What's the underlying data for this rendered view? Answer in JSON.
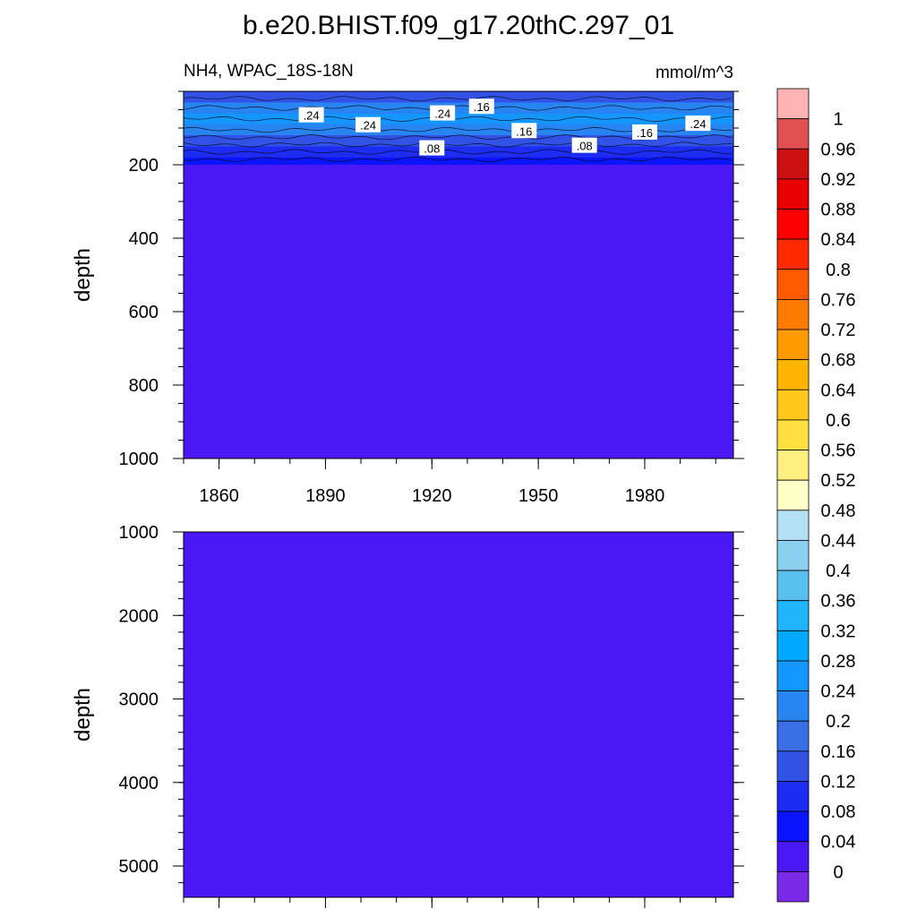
{
  "title": "b.e20.BHIST.f09_g17.20thC.297_01",
  "subtitle_left": "NH4, WPAC_18S-18N",
  "subtitle_right": "mmol/m^3",
  "chart_data": [
    {
      "type": "heatmap",
      "panel": "upper",
      "ylabel": "depth",
      "xlabel": "",
      "x_ticks": [
        "1860",
        "1890",
        "1920",
        "1950",
        "1980"
      ],
      "x_tick_values": [
        1860,
        1890,
        1920,
        1950,
        1980
      ],
      "xlim": [
        1850,
        2005
      ],
      "y_ticks": [
        "200",
        "400",
        "600",
        "800",
        "1000"
      ],
      "y_tick_values": [
        200,
        400,
        600,
        800,
        1000
      ],
      "ylim": [
        0,
        1000
      ],
      "y_inverted": true,
      "depth_profile": [
        {
          "depth": 5,
          "value": 0.14
        },
        {
          "depth": 30,
          "value": 0.22
        },
        {
          "depth": 60,
          "value": 0.27
        },
        {
          "depth": 90,
          "value": 0.22
        },
        {
          "depth": 120,
          "value": 0.15
        },
        {
          "depth": 150,
          "value": 0.09
        },
        {
          "depth": 180,
          "value": 0.05
        },
        {
          "depth": 200,
          "value": 0.0
        },
        {
          "depth": 1000,
          "value": 0.0
        }
      ],
      "contour_labels": [
        {
          "text": ".24",
          "x": 1886,
          "depth": 65
        },
        {
          "text": ".24",
          "x": 1902,
          "depth": 92
        },
        {
          "text": ".24",
          "x": 1923,
          "depth": 60
        },
        {
          "text": ".16",
          "x": 1934,
          "depth": 42
        },
        {
          "text": ".16",
          "x": 1946,
          "depth": 108
        },
        {
          "text": ".08",
          "x": 1920,
          "depth": 155
        },
        {
          "text": ".08",
          "x": 1963,
          "depth": 148
        },
        {
          "text": ".16",
          "x": 1980,
          "depth": 112
        },
        {
          "text": ".24",
          "x": 1995,
          "depth": 88
        }
      ]
    },
    {
      "type": "heatmap",
      "panel": "lower",
      "ylabel": "depth",
      "xlabel": "",
      "y_ticks": [
        "1000",
        "2000",
        "3000",
        "4000",
        "5000"
      ],
      "y_tick_values": [
        1000,
        2000,
        3000,
        4000,
        5000
      ],
      "ylim": [
        1000,
        5375
      ],
      "y_inverted": true,
      "xlim": [
        1850,
        2005
      ],
      "uniform_value": 0.0
    }
  ],
  "colorbar": {
    "labels": [
      "1",
      "0.96",
      "0.92",
      "0.88",
      "0.84",
      "0.8",
      "0.76",
      "0.72",
      "0.68",
      "0.64",
      "0.6",
      "0.56",
      "0.52",
      "0.48",
      "0.44",
      "0.4",
      "0.36",
      "0.32",
      "0.28",
      "0.24",
      "0.2",
      "0.16",
      "0.12",
      "0.08",
      "0.04",
      "0"
    ],
    "colors_top_to_bottom": [
      "#ffb3b3",
      "#e05050",
      "#cc1010",
      "#e60000",
      "#ff0000",
      "#ff2a00",
      "#ff5a00",
      "#ff7a00",
      "#ff9a00",
      "#ffb400",
      "#ffc81a",
      "#ffe040",
      "#fff080",
      "#ffffc8",
      "#b4e0f5",
      "#8cd0f0",
      "#5ac0f0",
      "#20b4fa",
      "#00a8ff",
      "#1496ff",
      "#2884f0",
      "#3a6ee6",
      "#3252e6",
      "#1c2cf0",
      "#0a14ff",
      "#4a18f6",
      "#7a2ae6"
    ]
  }
}
